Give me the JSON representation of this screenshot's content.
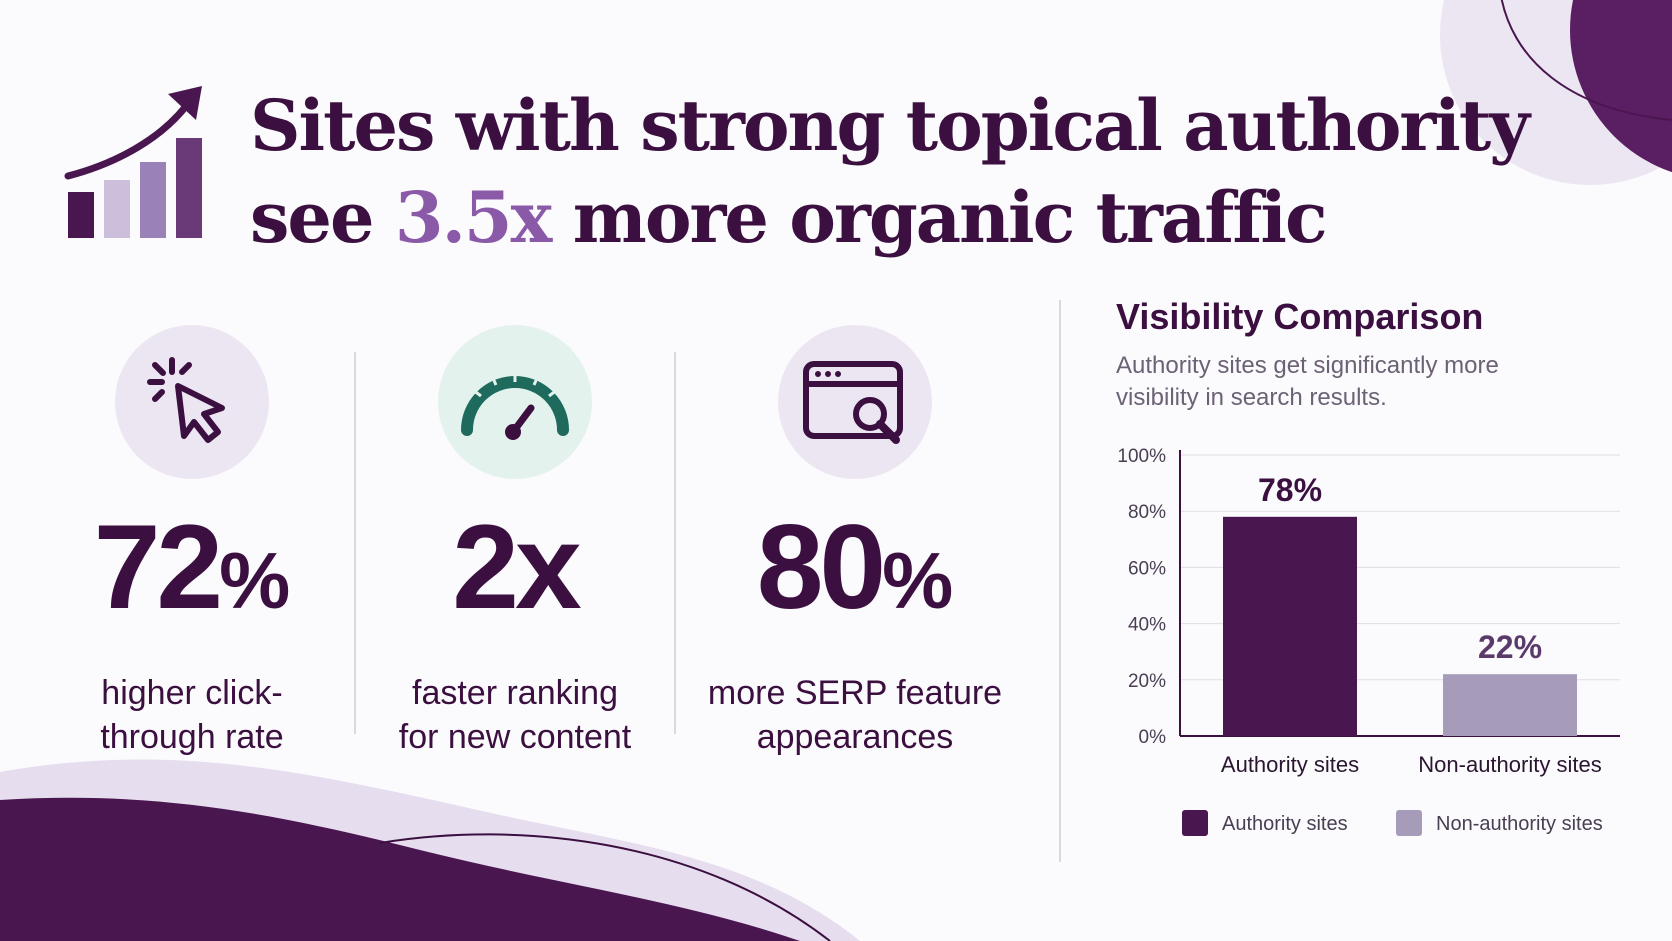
{
  "headline": {
    "line1": "Sites with strong topical authority",
    "line2_before": "see ",
    "line2_accent": "3.5x",
    "line2_after": " more organic traffic"
  },
  "icons": {
    "logo": "growth-bar-chart-icon",
    "stat1": "cursor-click-icon",
    "stat2": "speedometer-icon",
    "stat3": "browser-search-icon"
  },
  "stats": [
    {
      "number": "72",
      "unit": "%",
      "caption_line1": "higher click-",
      "caption_line2": "through rate"
    },
    {
      "number": "2x",
      "unit": "",
      "caption_line1": "faster ranking",
      "caption_line2": "for new content"
    },
    {
      "number": "80",
      "unit": "%",
      "caption_line1": "more SERP feature",
      "caption_line2": "appearances"
    }
  ],
  "colors": {
    "primary": "#4a1650",
    "secondary": "#a69cba",
    "accent": "#8a5aa8",
    "teal": "#1e6b5e",
    "lavender": "#ece6f2",
    "mint": "#e4f2ee"
  },
  "chart_data": {
    "type": "bar",
    "title": "Visibility Comparison",
    "subtitle": "Authority sites get significantly more visibility in search results.",
    "categories": [
      "Authority sites",
      "Non-authority sites"
    ],
    "values": [
      78,
      22
    ],
    "data_labels": [
      "78%",
      "22%"
    ],
    "ylim": [
      0,
      100
    ],
    "yticks": [
      0,
      20,
      40,
      60,
      80,
      100
    ],
    "ytick_labels": [
      "0%",
      "20%",
      "40%",
      "60%",
      "80%",
      "100%"
    ],
    "grid": true,
    "legend": [
      "Authority sites",
      "Non-authority sites"
    ],
    "legend_position": "bottom"
  }
}
